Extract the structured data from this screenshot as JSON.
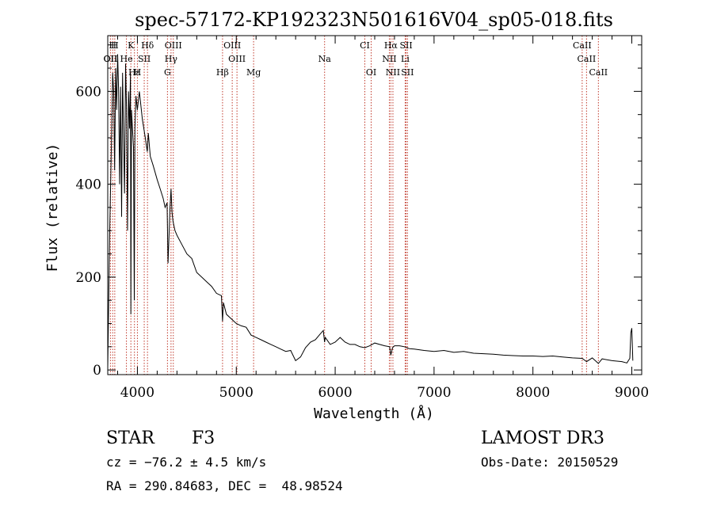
{
  "chart_data": {
    "type": "line",
    "title": "spec-57172-KP192323N501616V04_sp05-018.fits",
    "xlabel": "Wavelength (Å)",
    "ylabel": "Flux (relative)",
    "xlim": [
      3700,
      9100
    ],
    "ylim": [
      -10,
      720
    ],
    "x_ticks": [
      4000,
      5000,
      6000,
      7000,
      8000,
      9000
    ],
    "x_tick_labels": [
      "4000",
      "5000",
      "6000",
      "7000",
      "8000",
      "9000"
    ],
    "y_ticks": [
      0,
      200,
      400,
      600
    ],
    "y_tick_labels": [
      "0",
      "200",
      "400",
      "600"
    ],
    "grid": false,
    "series": [
      {
        "name": "spectrum",
        "x": [
          3700,
          3720,
          3740,
          3750,
          3760,
          3770,
          3780,
          3790,
          3800,
          3810,
          3820,
          3830,
          3840,
          3850,
          3860,
          3870,
          3880,
          3890,
          3900,
          3910,
          3920,
          3930,
          3934,
          3940,
          3950,
          3960,
          3968,
          3975,
          3985,
          4000,
          4020,
          4050,
          4080,
          4100,
          4110,
          4130,
          4160,
          4200,
          4230,
          4260,
          4280,
          4300,
          4310,
          4330,
          4340,
          4350,
          4360,
          4380,
          4400,
          4450,
          4500,
          4550,
          4600,
          4650,
          4700,
          4750,
          4800,
          4850,
          4861,
          4870,
          4900,
          4950,
          5000,
          5050,
          5100,
          5150,
          5200,
          5250,
          5300,
          5350,
          5400,
          5450,
          5500,
          5550,
          5600,
          5650,
          5700,
          5750,
          5800,
          5850,
          5880,
          5893,
          5900,
          5950,
          6000,
          6050,
          6100,
          6150,
          6200,
          6250,
          6300,
          6350,
          6400,
          6450,
          6500,
          6550,
          6563,
          6580,
          6600,
          6650,
          6700,
          6750,
          6800,
          6900,
          7000,
          7100,
          7200,
          7300,
          7400,
          7500,
          7600,
          7700,
          7800,
          7900,
          8000,
          8100,
          8200,
          8300,
          8400,
          8498,
          8542,
          8600,
          8662,
          8700,
          8800,
          8900,
          8950,
          8980,
          8990,
          9000,
          9010
        ],
        "y": [
          5,
          300,
          520,
          640,
          600,
          430,
          650,
          560,
          680,
          600,
          400,
          610,
          330,
          640,
          500,
          380,
          660,
          560,
          300,
          600,
          520,
          640,
          120,
          560,
          520,
          480,
          150,
          520,
          590,
          560,
          600,
          540,
          500,
          470,
          510,
          460,
          440,
          410,
          390,
          370,
          350,
          360,
          230,
          350,
          390,
          340,
          320,
          300,
          290,
          270,
          250,
          240,
          210,
          200,
          190,
          180,
          165,
          160,
          105,
          145,
          120,
          110,
          100,
          95,
          92,
          75,
          70,
          65,
          60,
          55,
          50,
          45,
          40,
          42,
          20,
          28,
          48,
          60,
          65,
          78,
          85,
          60,
          70,
          55,
          60,
          70,
          60,
          55,
          55,
          50,
          48,
          52,
          58,
          55,
          52,
          50,
          32,
          48,
          52,
          52,
          50,
          46,
          45,
          42,
          40,
          42,
          38,
          40,
          36,
          35,
          34,
          32,
          31,
          30,
          30,
          29,
          30,
          28,
          26,
          25,
          18,
          26,
          14,
          24,
          20,
          18,
          15,
          25,
          80,
          90,
          20
        ]
      }
    ],
    "line_labels": [
      {
        "text": "H",
        "x": 3750
      },
      {
        "text": "H",
        "x": 3771
      },
      {
        "text": "K",
        "x": 3934
      },
      {
        "text": "Hδ",
        "x": 4102
      },
      {
        "text": "OIII",
        "x": 4363
      },
      {
        "text": "OIII",
        "x": 4959
      },
      {
        "text": "CI",
        "x": 6300
      },
      {
        "text": "Hα",
        "x": 6563
      },
      {
        "text": "SII",
        "x": 6717
      },
      {
        "text": "CaII",
        "x": 8498
      },
      {
        "text": "OII",
        "x": 3727
      },
      {
        "text": "He",
        "x": 3889
      },
      {
        "text": "SII",
        "x": 4069
      },
      {
        "text": "Hγ",
        "x": 4340
      },
      {
        "text": "OIII",
        "x": 5007
      },
      {
        "text": "Na",
        "x": 5893
      },
      {
        "text": "NII",
        "x": 6548
      },
      {
        "text": "Li",
        "x": 6708
      },
      {
        "text": "CaII",
        "x": 8542
      },
      {
        "text": "OII",
        "x": 3729
      },
      {
        "text": "Hε",
        "x": 3970
      },
      {
        "text": "H",
        "x": 4000
      },
      {
        "text": "G",
        "x": 4304
      },
      {
        "text": "Hβ",
        "x": 4861
      },
      {
        "text": "Mg",
        "x": 5175
      },
      {
        "text": "OI",
        "x": 6364
      },
      {
        "text": "NII",
        "x": 6584
      },
      {
        "text": "SII",
        "x": 6731
      },
      {
        "text": "CaII",
        "x": 8662
      }
    ],
    "line_markers": [
      3727,
      3750,
      3771,
      3889,
      3934,
      3970,
      4000,
      4069,
      4102,
      4304,
      4340,
      4363,
      4861,
      4959,
      5007,
      5175,
      5893,
      6300,
      6364,
      6548,
      6563,
      6584,
      6708,
      6717,
      6731,
      8498,
      8542,
      8662
    ]
  },
  "annotations": {
    "object_class": "STAR",
    "subclass": "F3",
    "survey": "LAMOST DR3",
    "velocity": "cz = −76.2 ± 4.5 km/s",
    "obs_date": "Obs-Date: 20150529",
    "coords": "RA = 290.84683, DEC =  48.98524"
  }
}
